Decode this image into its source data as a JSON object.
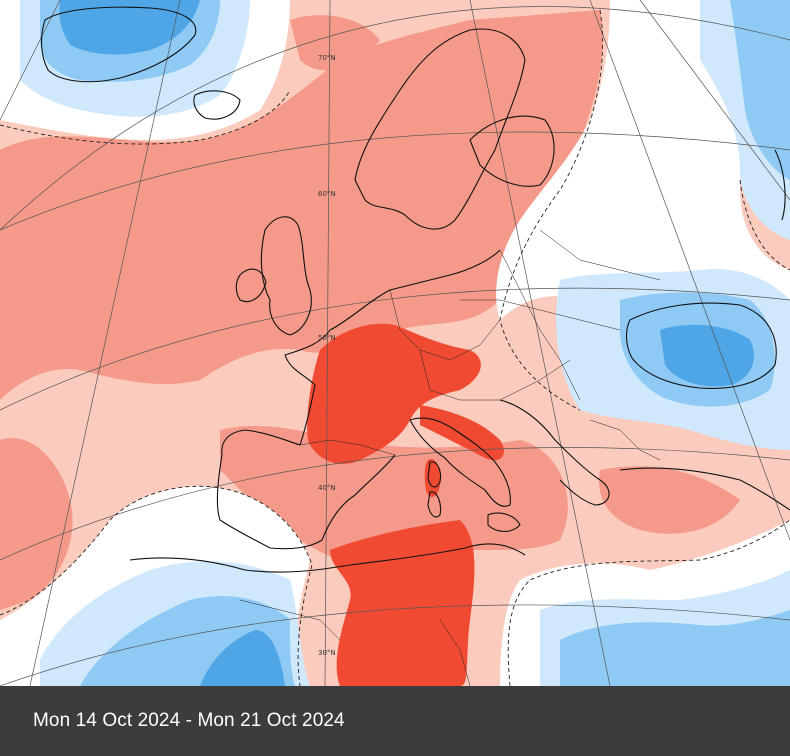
{
  "map": {
    "region": "Europe",
    "legend_colors": {
      "warm_strong": "#f04b32",
      "warm_medium": "#f59a8a",
      "warm_light": "#fbcbbe",
      "neutral": "#ffffff",
      "cool_light": "#cfe8fb",
      "cool_medium": "#8fcaf5",
      "cool_strong": "#4ea6e6"
    },
    "latitude_labels": [
      "70°N",
      "60°N",
      "50°N",
      "40°N",
      "30°N"
    ]
  },
  "caption": {
    "date_range": "Mon 14 Oct 2024 - Mon 21 Oct 2024"
  }
}
